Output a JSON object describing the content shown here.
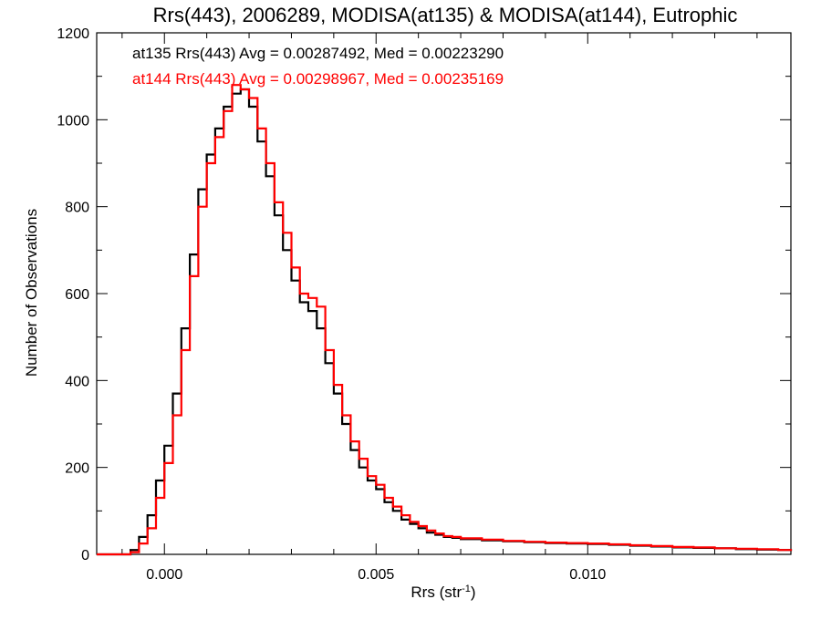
{
  "chart_data": {
    "type": "line",
    "title": "Rrs(443), 2006289, MODISA(at135) & MODISA(at144), Eutrophic",
    "xlabel": "Rrs (str",
    "xlabel_sup": "-1",
    "xlabel_close": ")",
    "ylabel": "Number of Observations",
    "xlim": [
      -0.0016,
      0.0148
    ],
    "ylim": [
      0,
      1200
    ],
    "x_ticks": [
      0.0,
      0.005,
      0.01
    ],
    "x_tick_labels": [
      "0.000",
      "0.005",
      "0.010"
    ],
    "y_ticks": [
      0,
      200,
      400,
      600,
      800,
      1000,
      1200
    ],
    "y_tick_labels": [
      "0",
      "200",
      "400",
      "600",
      "800",
      "1000",
      "1200"
    ],
    "grid": false,
    "annotations": [
      {
        "text": "at135 Rrs(443) Avg = 0.00287492, Med = 0.00223290",
        "color": "#000000"
      },
      {
        "text": "at144 Rrs(443) Avg = 0.00298967, Med = 0.00235169",
        "color": "#ff0000"
      }
    ],
    "series": [
      {
        "name": "at135",
        "color": "#000000",
        "x": [
          -0.0016,
          -0.001,
          -0.0008,
          -0.0006,
          -0.0004,
          -0.0002,
          0.0,
          0.0002,
          0.0004,
          0.0006,
          0.0008,
          0.001,
          0.0012,
          0.0014,
          0.0016,
          0.0018,
          0.002,
          0.0022,
          0.0024,
          0.0026,
          0.0028,
          0.003,
          0.0032,
          0.0034,
          0.0036,
          0.0038,
          0.004,
          0.0042,
          0.0044,
          0.0046,
          0.0048,
          0.005,
          0.0052,
          0.0054,
          0.0056,
          0.0058,
          0.006,
          0.0062,
          0.0064,
          0.0066,
          0.0068,
          0.007,
          0.0075,
          0.008,
          0.0085,
          0.009,
          0.0095,
          0.01,
          0.0105,
          0.011,
          0.0115,
          0.012,
          0.0125,
          0.013,
          0.0135,
          0.014,
          0.0145,
          0.0148
        ],
        "y": [
          0,
          0,
          10,
          40,
          90,
          170,
          250,
          370,
          520,
          690,
          840,
          920,
          980,
          1030,
          1060,
          1070,
          1030,
          950,
          870,
          780,
          700,
          630,
          580,
          560,
          520,
          440,
          370,
          300,
          240,
          200,
          170,
          150,
          120,
          100,
          80,
          70,
          60,
          50,
          45,
          40,
          38,
          35,
          32,
          30,
          28,
          26,
          25,
          24,
          22,
          20,
          18,
          16,
          15,
          14,
          12,
          11,
          10,
          8
        ]
      },
      {
        "name": "at144",
        "color": "#ff0000",
        "x": [
          -0.0016,
          -0.001,
          -0.0008,
          -0.0006,
          -0.0004,
          -0.0002,
          0.0,
          0.0002,
          0.0004,
          0.0006,
          0.0008,
          0.001,
          0.0012,
          0.0014,
          0.0016,
          0.0018,
          0.002,
          0.0022,
          0.0024,
          0.0026,
          0.0028,
          0.003,
          0.0032,
          0.0034,
          0.0036,
          0.0038,
          0.004,
          0.0042,
          0.0044,
          0.0046,
          0.0048,
          0.005,
          0.0052,
          0.0054,
          0.0056,
          0.0058,
          0.006,
          0.0062,
          0.0064,
          0.0066,
          0.0068,
          0.007,
          0.0075,
          0.008,
          0.0085,
          0.009,
          0.0095,
          0.01,
          0.0105,
          0.011,
          0.0115,
          0.012,
          0.0125,
          0.013,
          0.0135,
          0.014,
          0.0145,
          0.0148
        ],
        "y": [
          0,
          0,
          5,
          25,
          60,
          130,
          210,
          320,
          470,
          640,
          800,
          900,
          960,
          1020,
          1080,
          1070,
          1050,
          980,
          900,
          810,
          740,
          660,
          600,
          590,
          570,
          470,
          390,
          320,
          260,
          220,
          180,
          160,
          130,
          110,
          90,
          75,
          65,
          55,
          48,
          42,
          40,
          37,
          34,
          31,
          29,
          27,
          26,
          25,
          23,
          21,
          19,
          17,
          16,
          14,
          13,
          12,
          10,
          8
        ]
      }
    ]
  }
}
